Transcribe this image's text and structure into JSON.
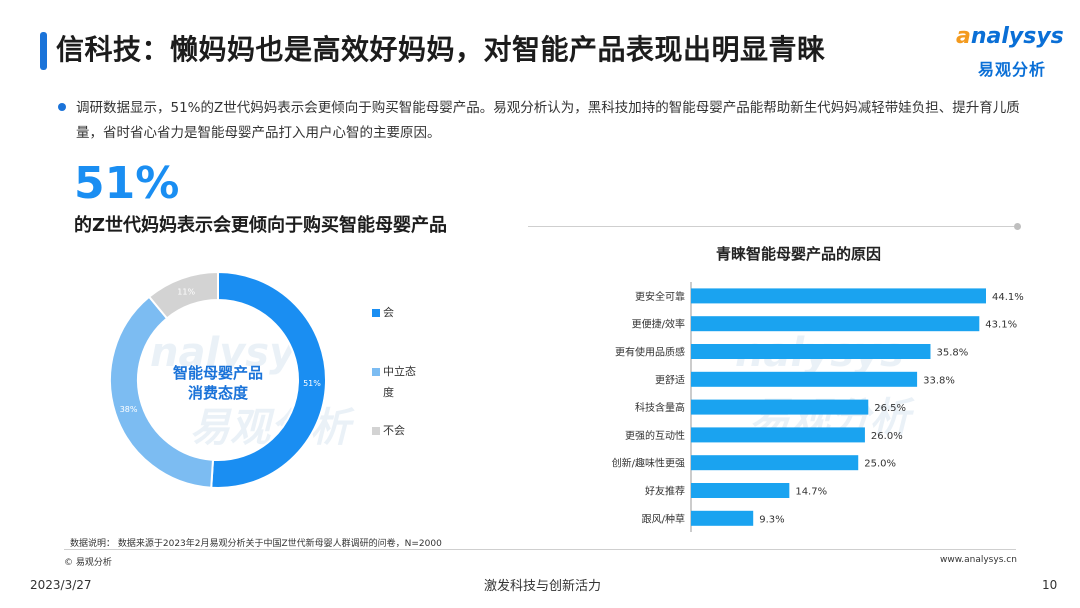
{
  "header": {
    "title": "信科技：懒妈妈也是高效好妈妈，对智能产品表现出明显青睐",
    "logo_en_prefix": "a",
    "logo_en_rest": "nalysys",
    "logo_cn": "易观分析"
  },
  "intro": {
    "text": "调研数据显示，51%的Z世代妈妈表示会更倾向于购买智能母婴产品。易观分析认为，黑科技加持的智能母婴产品能帮助新生代妈妈减轻带娃负担、提升育儿质量，省时省心省力是智能母婴产品打入用户心智的主要原因。"
  },
  "highlight": {
    "percent": "51%",
    "description": "的Z世代妈妈表示会更倾向于购买智能母婴产品"
  },
  "watermark": {
    "en": "nalysys",
    "cn": "易观分析"
  },
  "colors": {
    "accent": "#1a73d9",
    "bar": "#1aa3f0",
    "donut_yes": "#1a8ef2",
    "donut_neutral": "#7cbcf2",
    "donut_no": "#d3d3d3"
  },
  "chart_data": [
    {
      "type": "pie",
      "center_label_line1": "智能母婴产品",
      "center_label_line2": "消费态度",
      "categories": [
        "会",
        "中立态度",
        "不会"
      ],
      "legend_labels": [
        "会",
        "中立态",
        "度",
        "不会"
      ],
      "values": [
        51,
        38,
        11
      ],
      "value_labels": [
        "51%",
        "38%",
        "11%"
      ],
      "legend_position": "right"
    },
    {
      "type": "bar",
      "orientation": "horizontal",
      "title": "青睐智能母婴产品的原因",
      "categories": [
        "更安全可靠",
        "更便捷/效率",
        "更有使用品质感",
        "更舒适",
        "科技含量高",
        "更强的互动性",
        "创新/趣味性更强",
        "好友推荐",
        "跟风/种草"
      ],
      "values": [
        44.1,
        43.1,
        35.8,
        33.8,
        26.5,
        26.0,
        25.0,
        14.7,
        9.3
      ],
      "value_labels": [
        "44.1%",
        "43.1%",
        "35.8%",
        "33.8%",
        "26.5%",
        "26.0%",
        "25.0%",
        "14.7%",
        "9.3%"
      ],
      "xlim": [
        0,
        50
      ]
    }
  ],
  "footer": {
    "note": "数据说明： 数据来源于2023年2月易观分析关于中国Z世代新母婴人群调研的问卷，N=2000",
    "copyright": "© 易观分析",
    "website": "www.analysys.cn",
    "date": "2023/3/27",
    "slogan": "激发科技与创新活力",
    "page_number": "10"
  }
}
